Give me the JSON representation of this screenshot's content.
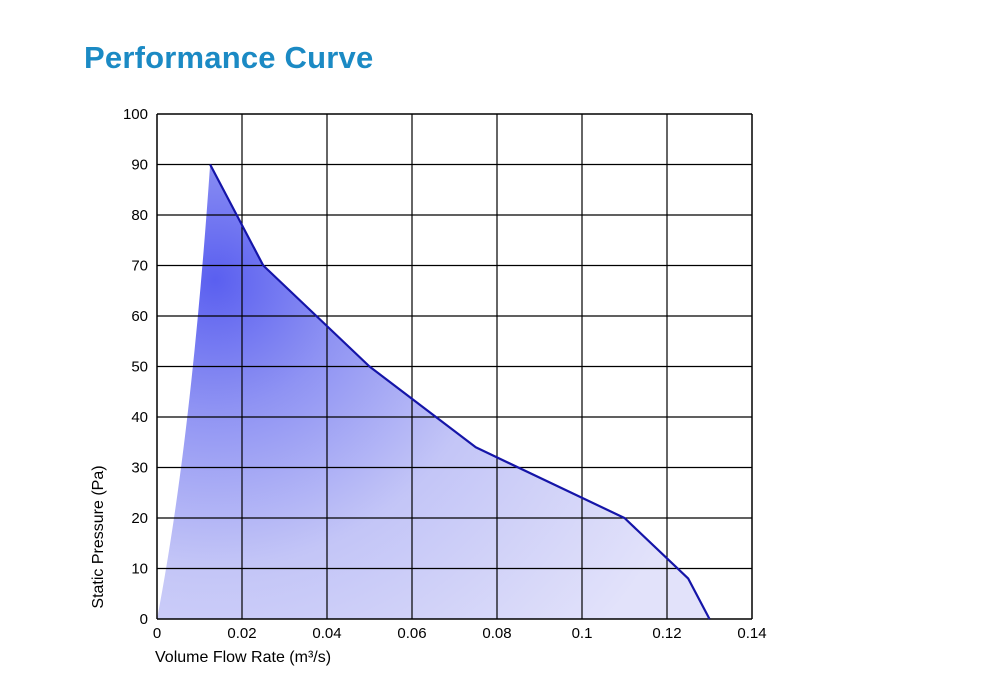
{
  "chart_data": {
    "type": "area",
    "title": "Performance Curve",
    "xlabel": "Volume Flow Rate (m³/s)",
    "ylabel": "Static Pressure (Pa)",
    "xlim": [
      0,
      0.14
    ],
    "ylim": [
      0,
      100
    ],
    "x_ticks": [
      "0",
      "0.02",
      "0.04",
      "0.06",
      "0.08",
      "0.1",
      "0.12",
      "0.14"
    ],
    "y_ticks": [
      "0",
      "10",
      "20",
      "30",
      "40",
      "50",
      "60",
      "70",
      "80",
      "90",
      "100"
    ],
    "grid": true,
    "series": [
      {
        "x": [
          0.0125,
          0.025,
          0.05,
          0.075,
          0.11,
          0.125,
          0.13
        ],
        "y": [
          90,
          70,
          50,
          34,
          20,
          8,
          0
        ]
      }
    ],
    "colors": {
      "line": "#1515a8",
      "fill_dark": "#5d62f0",
      "fill_light": "#dcdcf8",
      "grid": "#000000",
      "title": "#1b8ac4"
    }
  }
}
